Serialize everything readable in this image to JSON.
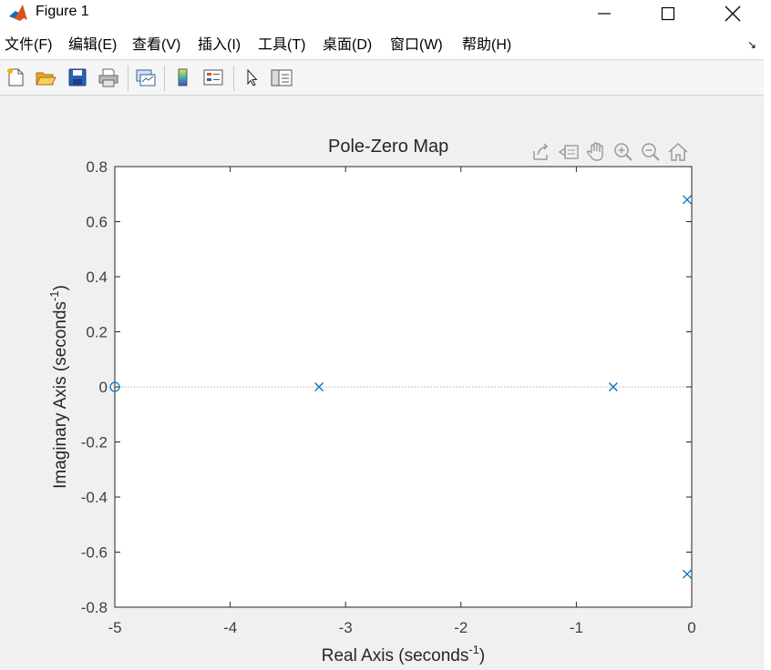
{
  "window": {
    "title": "Figure 1",
    "minimize_icon": "minimize-icon",
    "maximize_icon": "maximize-icon",
    "close_icon": "close-icon"
  },
  "menu": [
    "文件(F)",
    "编辑(E)",
    "查看(V)",
    "插入(I)",
    "工具(T)",
    "桌面(D)",
    "窗口(W)",
    "帮助(H)"
  ],
  "toolbar": {
    "icons": [
      "new-figure-icon",
      "open-file-icon",
      "save-icon",
      "print-icon",
      "link-plot-icon",
      "colorbar-icon",
      "legend-icon",
      "edit-plot-arrow-icon",
      "property-inspector-icon"
    ]
  },
  "axes_toolbar": {
    "icons": [
      "export-icon",
      "brush-icon",
      "pan-icon",
      "zoom-in-icon",
      "zoom-out-icon",
      "home-icon"
    ]
  },
  "colors": {
    "series": "#0072bd",
    "axis": "#262626",
    "tick_label": "#404040"
  },
  "chart_data": {
    "type": "scatter",
    "title": "Pole-Zero Map",
    "xlabel": "Real Axis (seconds",
    "xlabel_sup": "-1",
    "xlabel_end": ")",
    "ylabel": "Imaginary Axis (seconds",
    "ylabel_sup": "-1",
    "ylabel_end": ")",
    "xlim": [
      -5,
      0
    ],
    "ylim": [
      -0.8,
      0.8
    ],
    "xticks": [
      -5,
      -4,
      -3,
      -2,
      -1,
      0
    ],
    "xtick_labels": [
      "-5",
      "-4",
      "-3",
      "-2",
      "-1",
      "0"
    ],
    "yticks": [
      0.8,
      0.6,
      0.4,
      0.2,
      0,
      -0.2,
      -0.4,
      -0.6,
      -0.8
    ],
    "ytick_labels": [
      "0.8",
      "0.6",
      "0.4",
      "0.2",
      "0",
      "-0.2",
      "-0.4",
      "-0.6",
      "-0.8"
    ],
    "grid": false,
    "zero_line": true,
    "poles": [
      {
        "x": -3.23,
        "y": 0
      },
      {
        "x": -0.68,
        "y": 0
      },
      {
        "x": -0.04,
        "y": 0.68
      },
      {
        "x": -0.04,
        "y": -0.68
      }
    ],
    "zeros": [
      {
        "x": -5,
        "y": 0
      }
    ]
  }
}
